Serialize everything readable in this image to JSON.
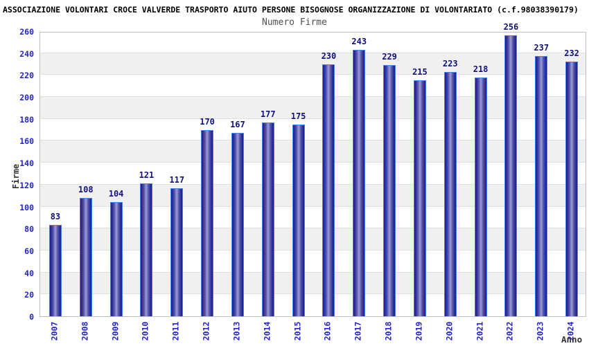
{
  "header": {
    "title": "ASSOCIAZIONE VOLONTARI CROCE VALVERDE TRASPORTO AIUTO PERSONE BISOGNOSE ORGANIZZAZIONE DI VOLONTARIATO (c.f.98038390179)",
    "subtitle": "Numero Firme"
  },
  "chart_data": {
    "type": "bar",
    "title": "Numero Firme",
    "categories": [
      "2007",
      "2008",
      "2009",
      "2010",
      "2011",
      "2012",
      "2013",
      "2014",
      "2015",
      "2016",
      "2017",
      "2018",
      "2019",
      "2020",
      "2021",
      "2022",
      "2023",
      "2024"
    ],
    "values": [
      83,
      108,
      104,
      121,
      117,
      170,
      167,
      177,
      175,
      230,
      243,
      229,
      215,
      223,
      218,
      256,
      237,
      232
    ],
    "xlabel": "Anno",
    "ylabel": "Firme",
    "ylim": [
      0,
      260
    ],
    "ytick_step": 20,
    "yticks": [
      0,
      20,
      40,
      60,
      80,
      100,
      120,
      140,
      160,
      180,
      200,
      220,
      240,
      260
    ],
    "legend": "none",
    "grid": "alternating-horizontal-bands",
    "colors": {
      "bar_edge": "#4585ef",
      "bar_dark": "#1f1f8a",
      "bar_light": "#a2a2da",
      "band_gray": "#f0f0f0",
      "gridline": "#e0e0e0",
      "plot_border": "#c0c0c0",
      "tick_label": "#2323cc",
      "value_label": "#10107e",
      "axis_title": "#333333",
      "title": "#000000",
      "subtitle": "#4f4f4f"
    }
  }
}
